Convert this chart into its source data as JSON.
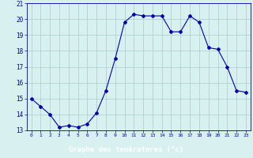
{
  "hours": [
    0,
    1,
    2,
    3,
    4,
    5,
    6,
    7,
    8,
    9,
    10,
    11,
    12,
    13,
    14,
    15,
    16,
    17,
    18,
    19,
    20,
    21,
    22,
    23
  ],
  "temps": [
    15.0,
    14.5,
    14.0,
    13.2,
    13.3,
    13.2,
    13.4,
    14.1,
    15.5,
    17.5,
    19.8,
    20.3,
    20.2,
    20.2,
    20.2,
    19.2,
    19.2,
    20.2,
    19.8,
    18.2,
    18.1,
    17.0,
    15.5,
    15.4
  ],
  "xlabel": "Graphe des temératures (°c)",
  "xlim": [
    -0.5,
    23.5
  ],
  "ylim": [
    13,
    21
  ],
  "yticks": [
    13,
    14,
    15,
    16,
    17,
    18,
    19,
    20,
    21
  ],
  "xticks": [
    0,
    1,
    2,
    3,
    4,
    5,
    6,
    7,
    8,
    9,
    10,
    11,
    12,
    13,
    14,
    15,
    16,
    17,
    18,
    19,
    20,
    21,
    22,
    23
  ],
  "line_color": "#0000aa",
  "marker": "D",
  "marker_size": 2.0,
  "bg_color": "#d8f0f0",
  "grid_color": "#aacccc",
  "axis_color": "#0000aa",
  "label_color": "#0000aa",
  "xlabel_bg": "#0000cc",
  "xlabel_text_color": "#ffffff"
}
